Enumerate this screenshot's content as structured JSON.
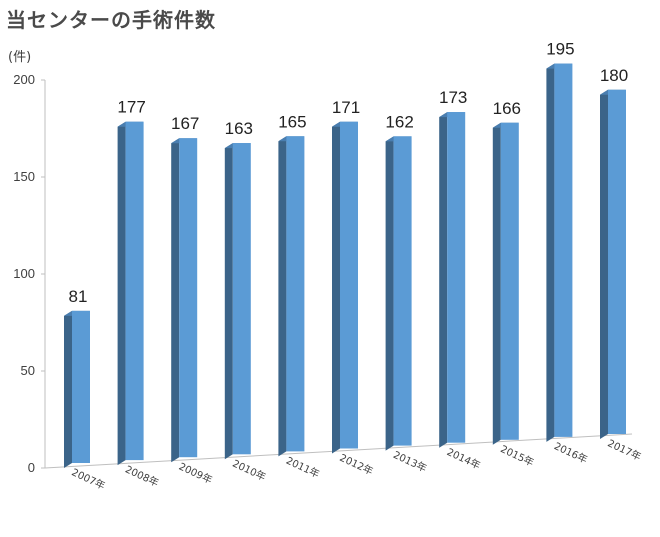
{
  "title": "当センターの手術件数",
  "unit": "(件)",
  "chart_data": {
    "type": "bar",
    "categories": [
      "2007年",
      "2008年",
      "2009年",
      "2010年",
      "2011年",
      "2012年",
      "2013年",
      "2014年",
      "2015年",
      "2016年",
      "2017年"
    ],
    "values": [
      81,
      177,
      167,
      163,
      165,
      171,
      162,
      173,
      166,
      195,
      180
    ],
    "ylim": [
      0,
      200
    ],
    "yticks": [
      0,
      50,
      100,
      150,
      200
    ],
    "grid": false,
    "legend": "none",
    "colors": {
      "front": "#5b9bd5",
      "side": "#3b6489",
      "top": "#4a7eb0",
      "axis": "#bfbfbf"
    }
  }
}
